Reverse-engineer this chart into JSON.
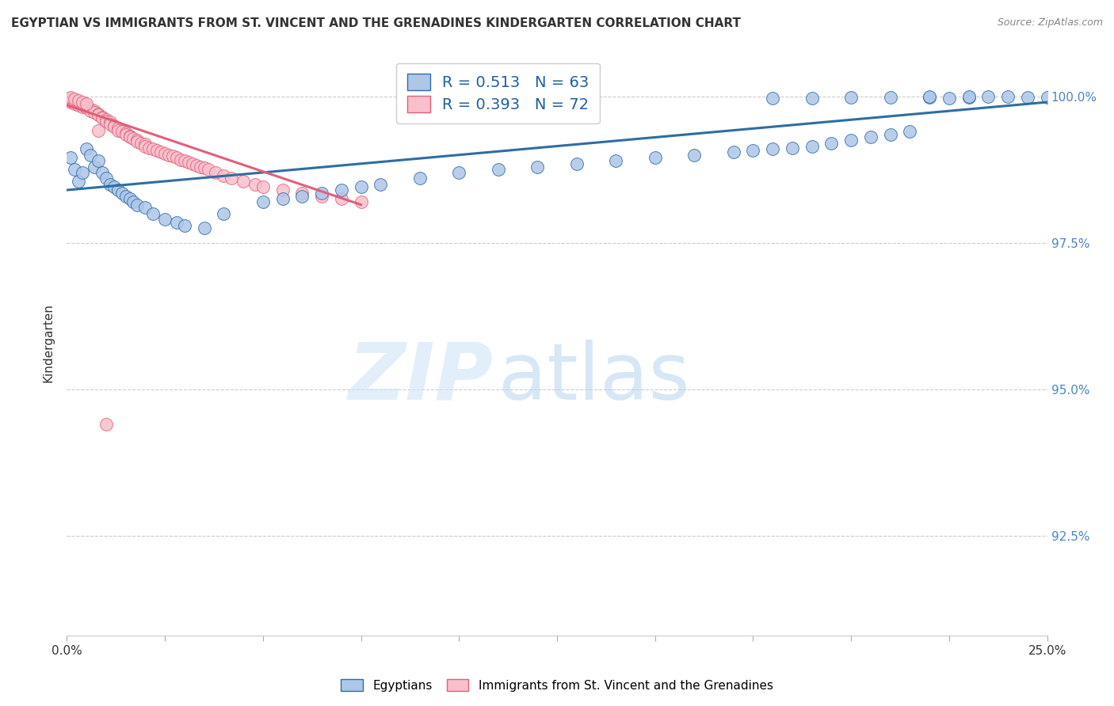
{
  "title": "EGYPTIAN VS IMMIGRANTS FROM ST. VINCENT AND THE GRENADINES KINDERGARTEN CORRELATION CHART",
  "source": "Source: ZipAtlas.com",
  "ylabel": "Kindergarten",
  "ytick_labels": [
    "92.5%",
    "95.0%",
    "97.5%",
    "100.0%"
  ],
  "ytick_values": [
    0.925,
    0.95,
    0.975,
    1.0
  ],
  "xmin": 0.0,
  "xmax": 0.25,
  "ymin": 0.908,
  "ymax": 1.008,
  "blue_color": "#aec6e8",
  "blue_line_color": "#2e6da4",
  "pink_color": "#f9c0cc",
  "pink_line_color": "#e0607a",
  "legend_blue_r": "R = 0.513",
  "legend_blue_n": "N = 63",
  "legend_pink_r": "R = 0.393",
  "legend_pink_n": "N = 72",
  "blue_trend": [
    0.0,
    0.25,
    0.984,
    0.999
  ],
  "pink_trend": [
    0.0,
    0.075,
    0.9985,
    0.9815
  ],
  "blue_x": [
    0.001,
    0.002,
    0.003,
    0.004,
    0.005,
    0.006,
    0.007,
    0.008,
    0.009,
    0.01,
    0.011,
    0.012,
    0.013,
    0.014,
    0.015,
    0.016,
    0.017,
    0.018,
    0.02,
    0.022,
    0.025,
    0.028,
    0.03,
    0.035,
    0.04,
    0.05,
    0.055,
    0.06,
    0.065,
    0.07,
    0.075,
    0.08,
    0.09,
    0.1,
    0.11,
    0.12,
    0.13,
    0.14,
    0.15,
    0.16,
    0.17,
    0.175,
    0.18,
    0.185,
    0.19,
    0.195,
    0.2,
    0.205,
    0.21,
    0.215,
    0.22,
    0.225,
    0.23,
    0.235,
    0.24,
    0.245,
    0.25,
    0.18,
    0.19,
    0.2,
    0.21,
    0.22,
    0.23
  ],
  "blue_y": [
    0.9895,
    0.9875,
    0.9855,
    0.987,
    0.991,
    0.99,
    0.988,
    0.989,
    0.987,
    0.986,
    0.985,
    0.9845,
    0.984,
    0.9835,
    0.983,
    0.9825,
    0.982,
    0.9815,
    0.981,
    0.98,
    0.979,
    0.9785,
    0.978,
    0.9775,
    0.98,
    0.982,
    0.9825,
    0.983,
    0.9835,
    0.984,
    0.9845,
    0.985,
    0.986,
    0.987,
    0.9875,
    0.988,
    0.9885,
    0.989,
    0.9895,
    0.99,
    0.9905,
    0.9908,
    0.991,
    0.9912,
    0.9915,
    0.992,
    0.9925,
    0.993,
    0.9935,
    0.994,
    0.9998,
    0.9997,
    0.9998,
    0.9999,
    0.9999,
    0.9998,
    0.9998,
    0.9997,
    0.9997,
    0.9998,
    0.9998,
    0.9999,
    0.9999
  ],
  "pink_x": [
    0.0005,
    0.001,
    0.001,
    0.002,
    0.002,
    0.003,
    0.003,
    0.004,
    0.004,
    0.005,
    0.005,
    0.006,
    0.006,
    0.007,
    0.007,
    0.008,
    0.008,
    0.009,
    0.009,
    0.01,
    0.01,
    0.011,
    0.011,
    0.012,
    0.012,
    0.013,
    0.013,
    0.014,
    0.015,
    0.015,
    0.016,
    0.016,
    0.017,
    0.018,
    0.018,
    0.019,
    0.02,
    0.02,
    0.021,
    0.022,
    0.023,
    0.024,
    0.025,
    0.026,
    0.027,
    0.028,
    0.029,
    0.03,
    0.031,
    0.032,
    0.033,
    0.034,
    0.035,
    0.036,
    0.038,
    0.04,
    0.042,
    0.045,
    0.048,
    0.05,
    0.055,
    0.06,
    0.065,
    0.07,
    0.075,
    0.001,
    0.002,
    0.003,
    0.004,
    0.005,
    0.008,
    0.01
  ],
  "pink_y": [
    0.9995,
    0.9992,
    0.999,
    0.999,
    0.9988,
    0.9988,
    0.9985,
    0.9985,
    0.9982,
    0.9982,
    0.998,
    0.9978,
    0.9975,
    0.9975,
    0.9972,
    0.997,
    0.9968,
    0.9965,
    0.9963,
    0.996,
    0.9958,
    0.9956,
    0.9952,
    0.995,
    0.9948,
    0.9945,
    0.9942,
    0.994,
    0.9938,
    0.9935,
    0.9932,
    0.993,
    0.9928,
    0.9925,
    0.9922,
    0.992,
    0.9918,
    0.9915,
    0.9912,
    0.991,
    0.9908,
    0.9905,
    0.9902,
    0.99,
    0.9898,
    0.9895,
    0.9892,
    0.989,
    0.9888,
    0.9885,
    0.9882,
    0.988,
    0.9878,
    0.9875,
    0.987,
    0.9865,
    0.986,
    0.9855,
    0.985,
    0.9845,
    0.984,
    0.9835,
    0.983,
    0.9825,
    0.982,
    0.9998,
    0.9995,
    0.9993,
    0.999,
    0.9988,
    0.9942,
    0.944
  ]
}
